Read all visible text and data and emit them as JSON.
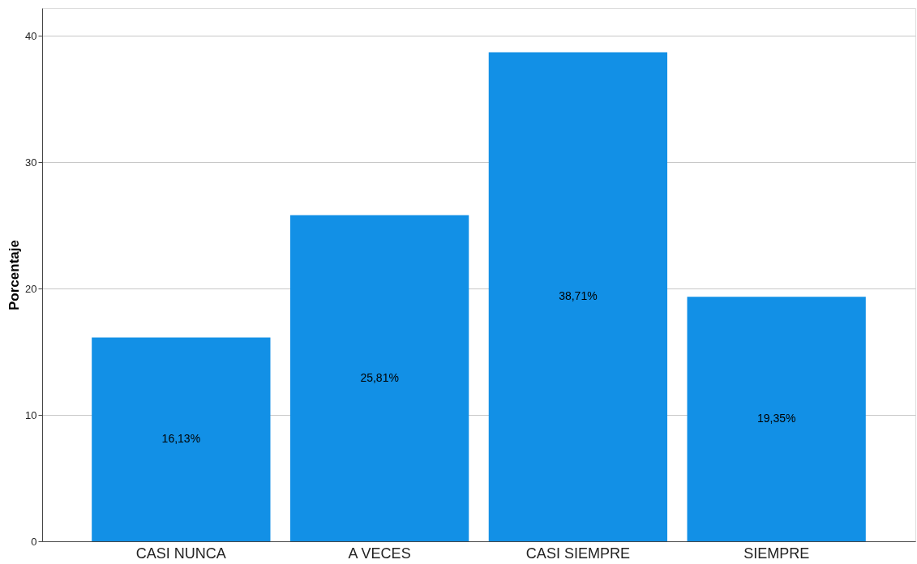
{
  "chart_data": {
    "type": "bar",
    "ylabel": "Porcentaje",
    "categories": [
      "CASI NUNCA",
      "A VECES",
      "CASI SIEMPRE",
      "SIEMPRE"
    ],
    "values": [
      16.13,
      25.81,
      38.71,
      19.35
    ],
    "color": "#1290e6",
    "value_labels": [
      "16,13%",
      "25,81%",
      "38,71%",
      "19,35%"
    ],
    "ylim": [
      0,
      42.2
    ],
    "yticks": [
      0,
      10,
      20,
      30,
      40
    ],
    "grid": "y"
  }
}
